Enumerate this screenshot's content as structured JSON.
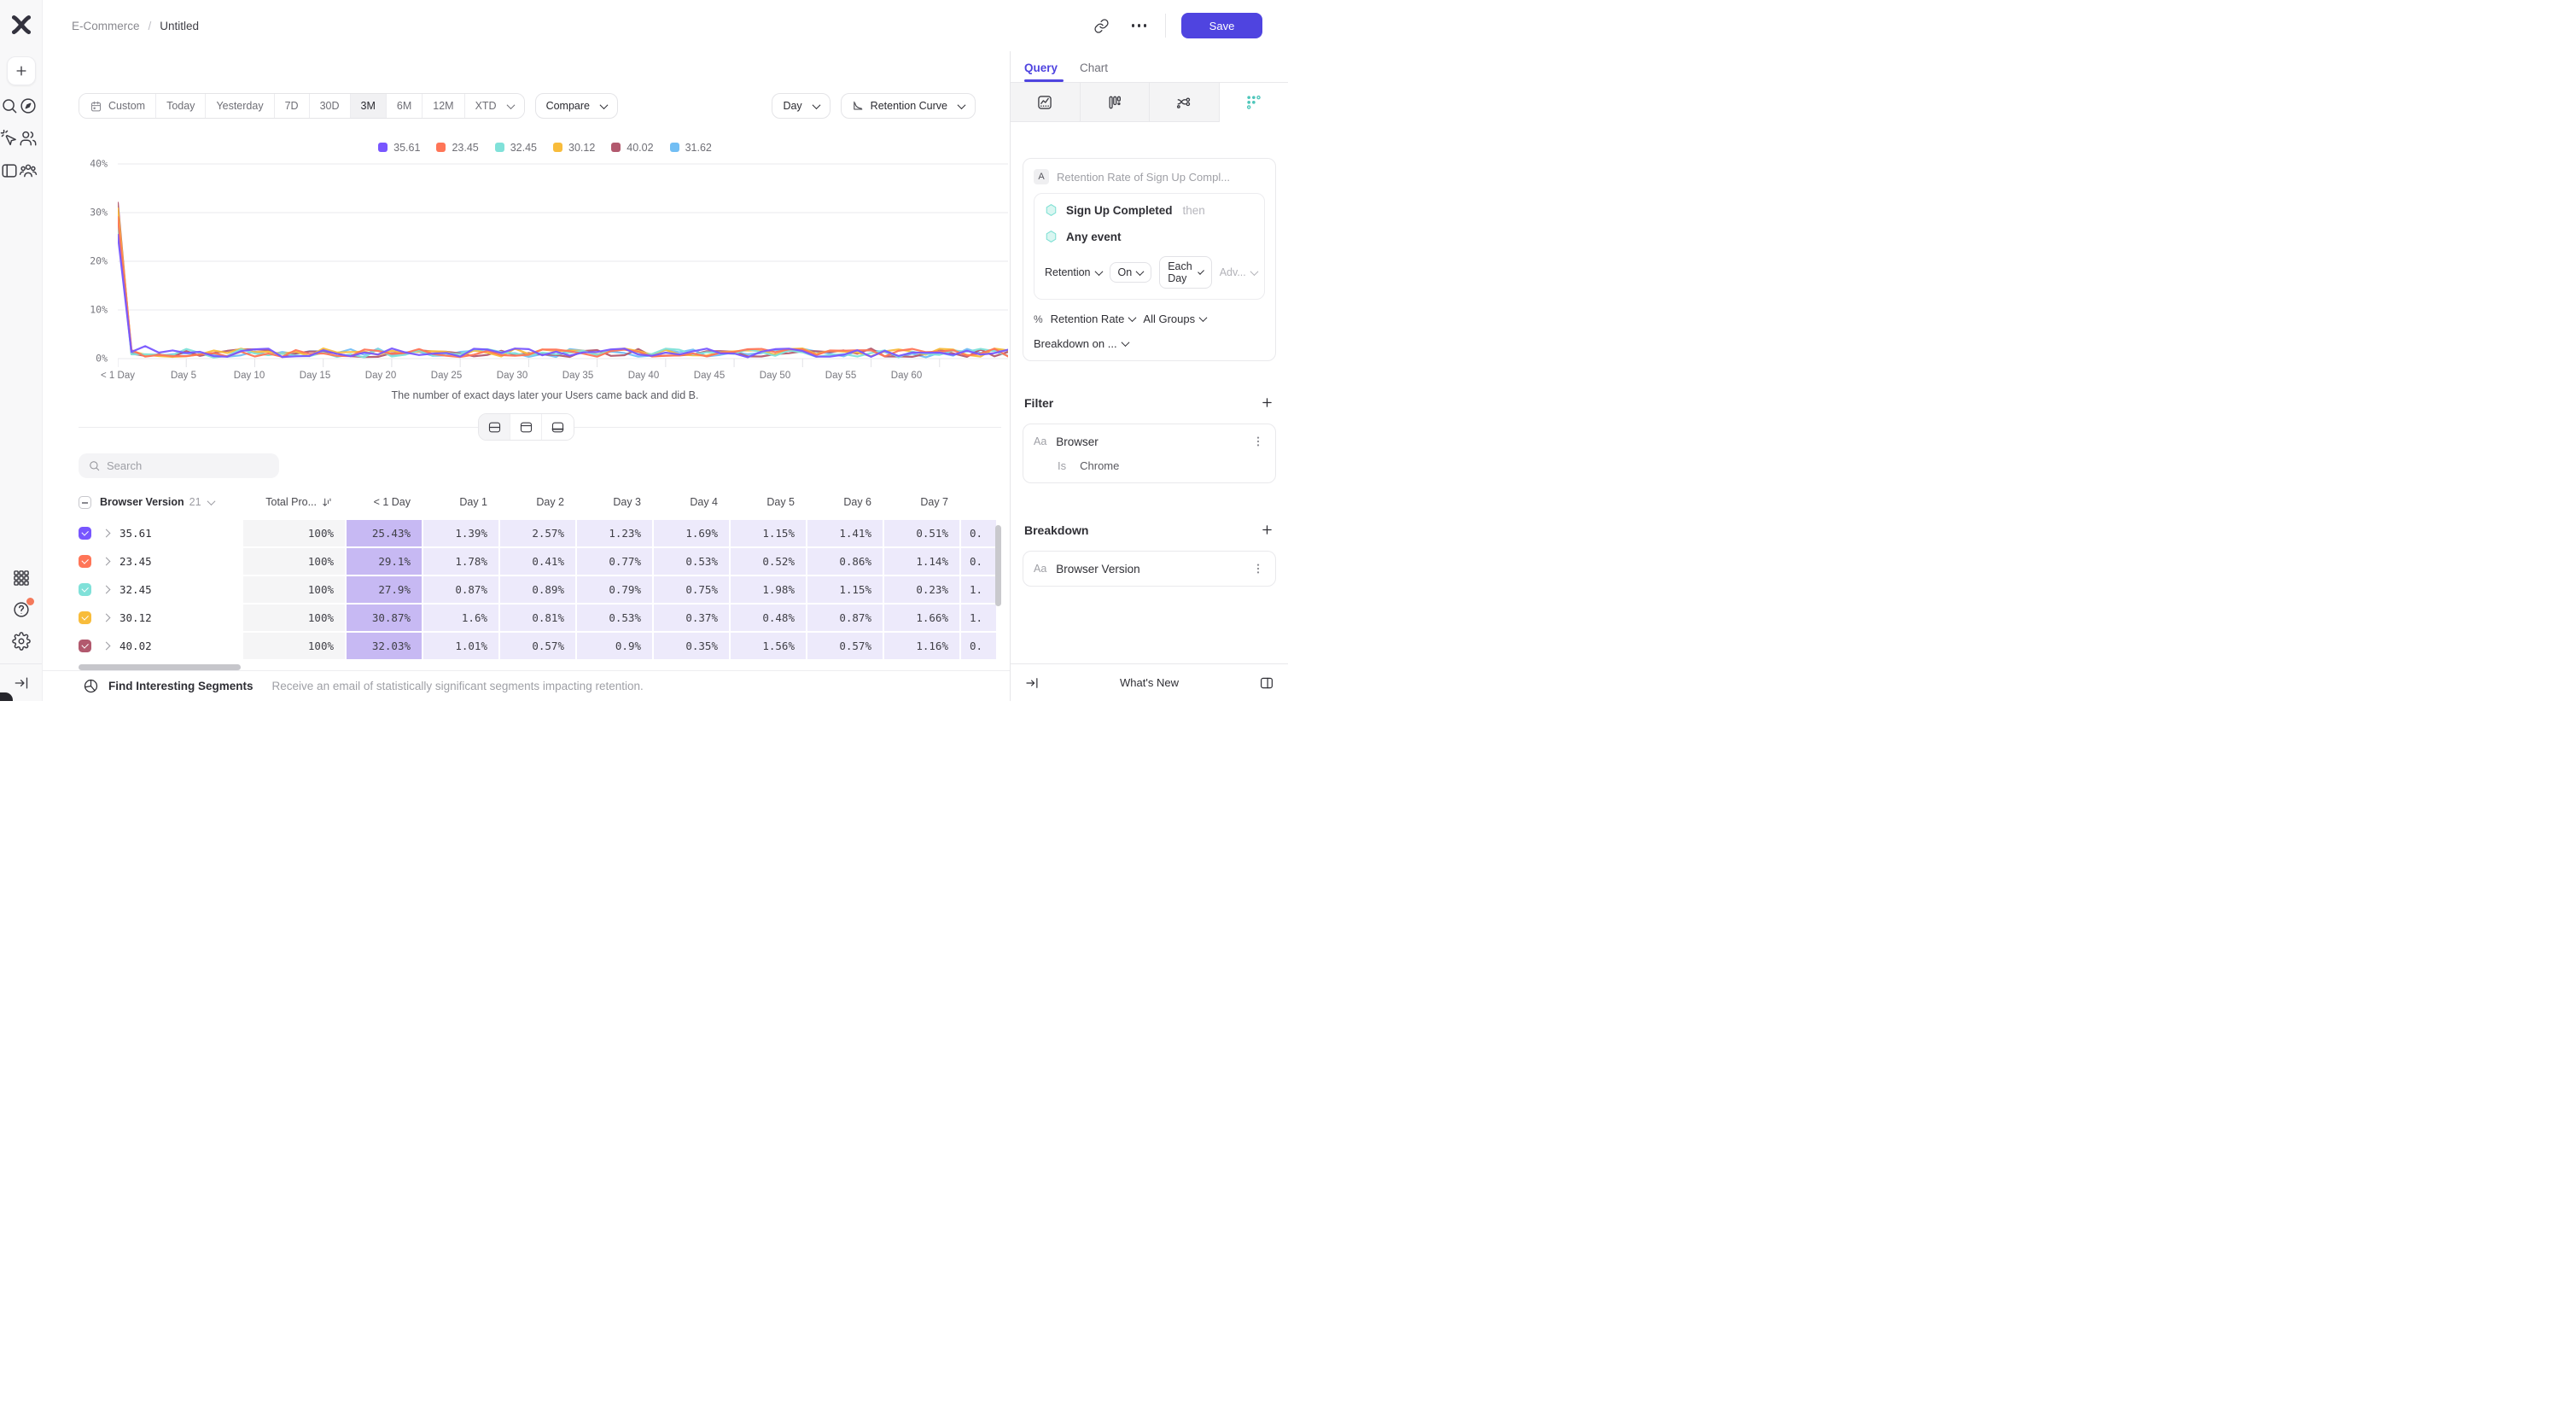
{
  "colors": {
    "accent": "#4f44e0",
    "cell_first": "#c7b9f3",
    "cell_day": "#edeafb",
    "retention_icon": "#4ec6ba"
  },
  "topbar": {
    "breadcrumb": {
      "project": "E-Commerce",
      "separator": "/",
      "title": "Untitled"
    },
    "save_label": "Save",
    "icons": [
      "link-icon",
      "more-icon"
    ]
  },
  "sidebar": {
    "top_icons": [
      "mixpanel-logo",
      "plus",
      "search",
      "compass",
      "magic-wand",
      "users",
      "board",
      "group"
    ],
    "bottom_icons": [
      "apps-grid",
      "help",
      "gear"
    ],
    "collapse_icon": "collapse-right"
  },
  "controls": {
    "date_ranges": [
      "Custom",
      "Today",
      "Yesterday",
      "7D",
      "30D",
      "3M",
      "6M",
      "12M",
      "XTD"
    ],
    "selected_range": "3M",
    "dropdown_ranges": [
      "XTD"
    ],
    "compare_label": "Compare",
    "granularity_label": "Day",
    "view_label": "Retention Curve"
  },
  "chart_data": {
    "type": "line",
    "caption": "The number of exact days later your Users came back and did B.",
    "y_ticks": [
      "40%",
      "30%",
      "20%",
      "10%",
      "0%"
    ],
    "ylim": [
      0,
      40
    ],
    "x_tick_labels": [
      "< 1 Day",
      "Day 5",
      "Day 10",
      "Day 15",
      "Day 20",
      "Day 25",
      "Day 30",
      "Day 35",
      "Day 40",
      "Day 45",
      "Day 50",
      "Day 55",
      "Day 60"
    ],
    "x_tick_step_days": 5,
    "x_days_max": 65,
    "grid": "horizontal",
    "legend_position": "top-center",
    "series": [
      {
        "name": "35.61",
        "color": "#7856FF",
        "values_day0_to_7": [
          25.43,
          1.39,
          2.57,
          1.23,
          1.69,
          1.15,
          1.41,
          0.51
        ]
      },
      {
        "name": "23.45",
        "color": "#FF7557",
        "values_day0_to_7": [
          29.1,
          1.78,
          0.41,
          0.77,
          0.53,
          0.52,
          0.86,
          1.14
        ]
      },
      {
        "name": "32.45",
        "color": "#80E1D9",
        "values_day0_to_7": [
          27.9,
          0.87,
          0.89,
          0.79,
          0.75,
          1.98,
          1.15,
          0.23
        ]
      },
      {
        "name": "30.12",
        "color": "#F8BC3B",
        "values_day0_to_7": [
          30.87,
          1.6,
          0.81,
          0.53,
          0.37,
          0.48,
          0.87,
          1.66
        ]
      },
      {
        "name": "40.02",
        "color": "#B2596E",
        "values_day0_to_7": [
          32.03,
          1.01,
          0.57,
          0.9,
          0.35,
          1.56,
          0.57,
          1.16
        ]
      },
      {
        "name": "31.62",
        "color": "#72BEF4",
        "values_day0_to_7": [
          27.95,
          1.2,
          0.8,
          0.6,
          0.9,
          1.1,
          0.7,
          0.9
        ],
        "estimated_from_chart": true
      }
    ],
    "tail_range_pct": [
      0.25,
      2.1
    ]
  },
  "view_toggle": {
    "options": [
      "split-view",
      "chart-only",
      "table-only"
    ],
    "selected": "split-view"
  },
  "table": {
    "search_placeholder": "Search",
    "group_column": {
      "label": "Browser Version",
      "count": "21"
    },
    "total_column": "Total Pro...",
    "day_columns": [
      "< 1 Day",
      "Day 1",
      "Day 2",
      "Day 3",
      "Day 4",
      "Day 5",
      "Day 6",
      "Day 7"
    ],
    "rows": [
      {
        "label": "35.61",
        "color": "#7856FF",
        "total": "100%",
        "values": [
          "25.43%",
          "1.39%",
          "2.57%",
          "1.23%",
          "1.69%",
          "1.15%",
          "1.41%",
          "0.51%"
        ],
        "partial": "0."
      },
      {
        "label": "23.45",
        "color": "#FF7557",
        "total": "100%",
        "values": [
          "29.1%",
          "1.78%",
          "0.41%",
          "0.77%",
          "0.53%",
          "0.52%",
          "0.86%",
          "1.14%"
        ],
        "partial": "0."
      },
      {
        "label": "32.45",
        "color": "#80E1D9",
        "total": "100%",
        "values": [
          "27.9%",
          "0.87%",
          "0.89%",
          "0.79%",
          "0.75%",
          "1.98%",
          "1.15%",
          "0.23%"
        ],
        "partial": "1."
      },
      {
        "label": "30.12",
        "color": "#F8BC3B",
        "total": "100%",
        "values": [
          "30.87%",
          "1.6%",
          "0.81%",
          "0.53%",
          "0.37%",
          "0.48%",
          "0.87%",
          "1.66%"
        ],
        "partial": "1."
      },
      {
        "label": "40.02",
        "color": "#B2596E",
        "total": "100%",
        "values": [
          "32.03%",
          "1.01%",
          "0.57%",
          "0.9%",
          "0.35%",
          "1.56%",
          "0.57%",
          "1.16%"
        ],
        "partial": "0."
      }
    ]
  },
  "report_footer": {
    "title": "Find Interesting Segments",
    "subtitle": "Receive an email of statistically significant segments impacting retention."
  },
  "panel": {
    "tabs": [
      {
        "label": "Query",
        "active": true
      },
      {
        "label": "Chart",
        "active": false
      }
    ],
    "chart_type_icons": [
      "insights-icon",
      "bar-chart-icon",
      "flows-icon",
      "retention-dots-icon"
    ],
    "selected_chart_type": "retention-dots-icon",
    "query": {
      "step_badge": "A",
      "step_title": "Retention Rate of Sign Up Compl...",
      "first_event": "Sign Up Completed",
      "then_label": "then",
      "second_event": "Any event",
      "retention_label": "Retention",
      "on_label": "On",
      "each_label": "Each Day",
      "adv_label": "Adv...",
      "percent_symbol": "%",
      "metric_label": "Retention Rate",
      "groups_label": "All Groups",
      "breakdown_on_label": "Breakdown on ..."
    },
    "filter": {
      "heading": "Filter",
      "property_type": "Aa",
      "property": "Browser",
      "operator": "Is",
      "value": "Chrome"
    },
    "breakdown": {
      "heading": "Breakdown",
      "property_type": "Aa",
      "property": "Browser Version"
    },
    "footer": {
      "whats_new": "What's New",
      "icons": [
        "collapse-right",
        "panel-columns"
      ]
    }
  }
}
